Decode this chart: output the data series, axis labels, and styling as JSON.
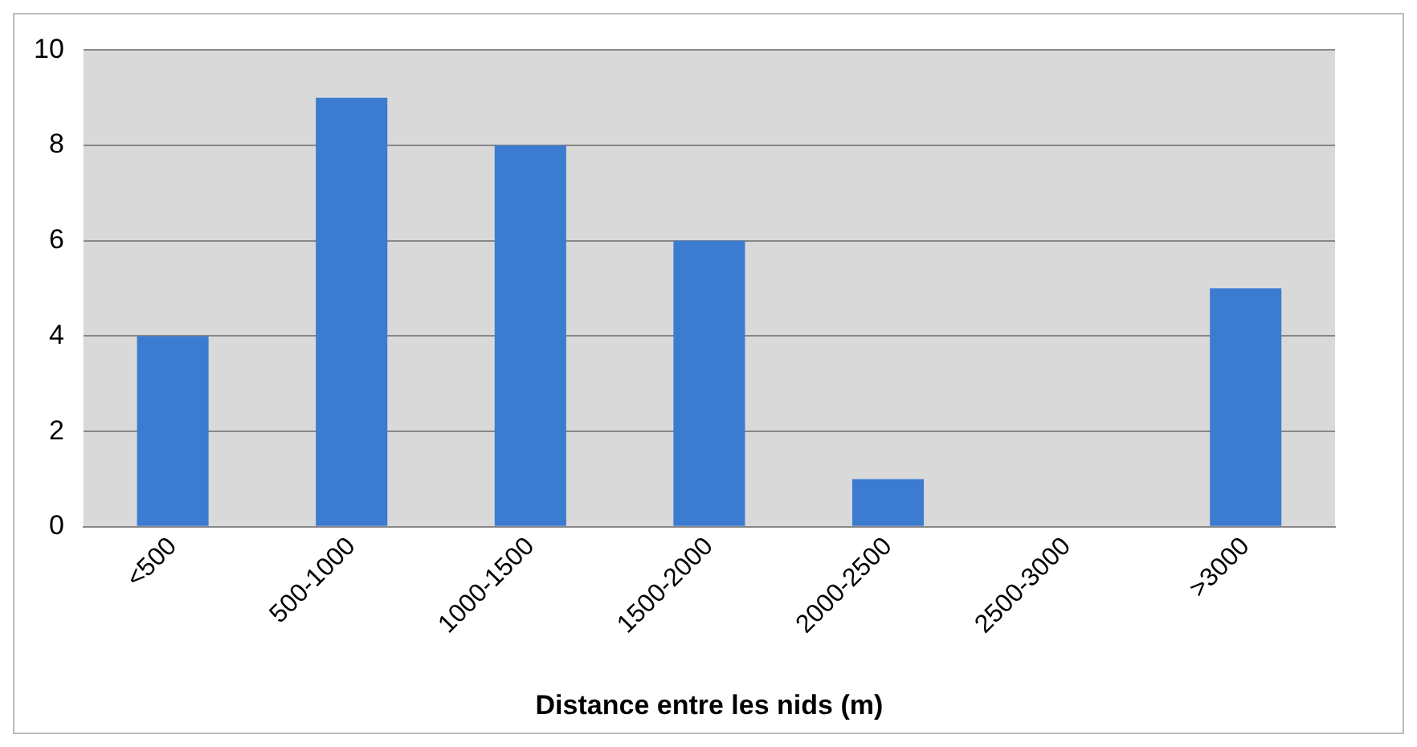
{
  "chart_data": {
    "type": "bar",
    "xlabel": "Distance entre les nids (m)",
    "categories": [
      "<500",
      "500-1000",
      "1000-1500",
      "1500-2000",
      "2000-2500",
      "2500-3000",
      ">3000"
    ],
    "values": [
      4,
      9,
      8,
      6,
      1,
      0,
      5
    ],
    "color": "#3b7bd0",
    "ylim": [
      0,
      10
    ],
    "yticks": [
      0,
      2,
      4,
      6,
      8,
      10
    ],
    "grid": "y"
  }
}
